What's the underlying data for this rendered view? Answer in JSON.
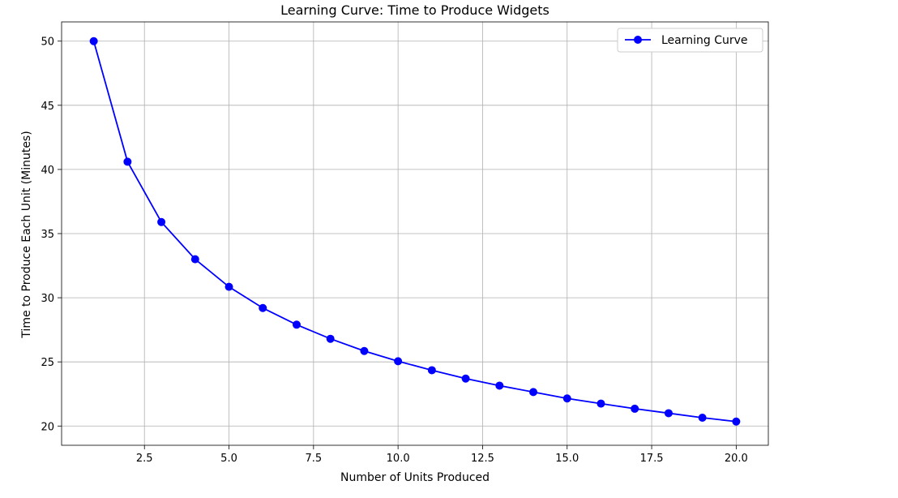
{
  "chart_data": {
    "type": "line",
    "title": "Learning Curve: Time to Produce Widgets",
    "xlabel": "Number of Units Produced",
    "ylabel": "Time to Produce Each Unit (Minutes)",
    "xlim": [
      0.05,
      20.95
    ],
    "ylim": [
      18.5,
      51.5
    ],
    "xticks": [
      2.5,
      5.0,
      7.5,
      10.0,
      12.5,
      15.0,
      17.5,
      20.0
    ],
    "xtick_labels": [
      "2.5",
      "5.0",
      "7.5",
      "10.0",
      "12.5",
      "15.0",
      "17.5",
      "20.0"
    ],
    "yticks": [
      20,
      25,
      30,
      35,
      40,
      45,
      50
    ],
    "ytick_labels": [
      "20",
      "25",
      "30",
      "35",
      "40",
      "45",
      "50"
    ],
    "grid": true,
    "legend_position": "top-right",
    "series": [
      {
        "name": "Learning Curve",
        "color": "#0000ff",
        "marker": "circle",
        "x": [
          1,
          2,
          3,
          4,
          5,
          6,
          7,
          8,
          9,
          10,
          11,
          12,
          13,
          14,
          15,
          16,
          17,
          18,
          19,
          20
        ],
        "y": [
          50.0,
          40.6,
          35.9,
          33.0,
          30.85,
          29.2,
          27.9,
          26.8,
          25.85,
          25.05,
          24.35,
          23.7,
          23.15,
          22.65,
          22.15,
          21.75,
          21.35,
          21.0,
          20.65,
          20.35
        ]
      }
    ]
  }
}
